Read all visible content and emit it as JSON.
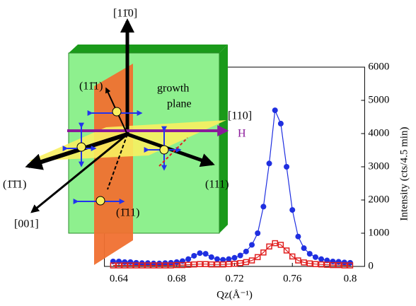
{
  "chart_data": {
    "type": "line",
    "x_label": "Qz(Å⁻¹)",
    "y_label": "Intensity (cts/4.5 min)",
    "x": [
      0.636,
      0.64,
      0.644,
      0.648,
      0.652,
      0.656,
      0.66,
      0.664,
      0.668,
      0.672,
      0.676,
      0.68,
      0.684,
      0.688,
      0.692,
      0.696,
      0.7,
      0.704,
      0.708,
      0.712,
      0.716,
      0.72,
      0.724,
      0.728,
      0.732,
      0.736,
      0.74,
      0.744,
      0.748,
      0.752,
      0.756,
      0.76,
      0.764,
      0.768,
      0.772,
      0.776,
      0.78,
      0.784,
      0.788,
      0.792,
      0.796,
      0.8
    ],
    "series": [
      {
        "color": "#1f2fe0",
        "marker": "circle",
        "values": [
          150,
          150,
          130,
          130,
          110,
          100,
          100,
          90,
          90,
          100,
          110,
          130,
          160,
          220,
          320,
          400,
          380,
          280,
          220,
          200,
          220,
          260,
          330,
          450,
          650,
          1000,
          1800,
          3100,
          4700,
          4300,
          3000,
          1700,
          900,
          550,
          380,
          280,
          220,
          180,
          150,
          140,
          120,
          110
        ]
      },
      {
        "color": "#e02020",
        "marker": "square",
        "values": [
          30,
          30,
          30,
          30,
          30,
          30,
          30,
          30,
          30,
          30,
          30,
          40,
          40,
          50,
          60,
          70,
          70,
          60,
          60,
          60,
          70,
          80,
          100,
          130,
          180,
          280,
          420,
          600,
          700,
          650,
          480,
          300,
          180,
          120,
          90,
          70,
          60,
          50,
          40,
          40,
          30,
          30
        ]
      }
    ],
    "xlim": [
      0.63,
      0.81
    ],
    "xticks": [
      0.64,
      0.68,
      0.72,
      0.76,
      0.8
    ],
    "ylim": [
      0,
      6000
    ],
    "yticks": [
      0,
      1000,
      2000,
      3000,
      4000,
      5000,
      6000
    ],
    "annotations": [
      "[11̄0]",
      "growth",
      "plane",
      "[110]",
      "H",
      "(11̄1)",
      "(1̄1̄1)",
      "(111)",
      "(1̄11)",
      "[001]"
    ]
  }
}
